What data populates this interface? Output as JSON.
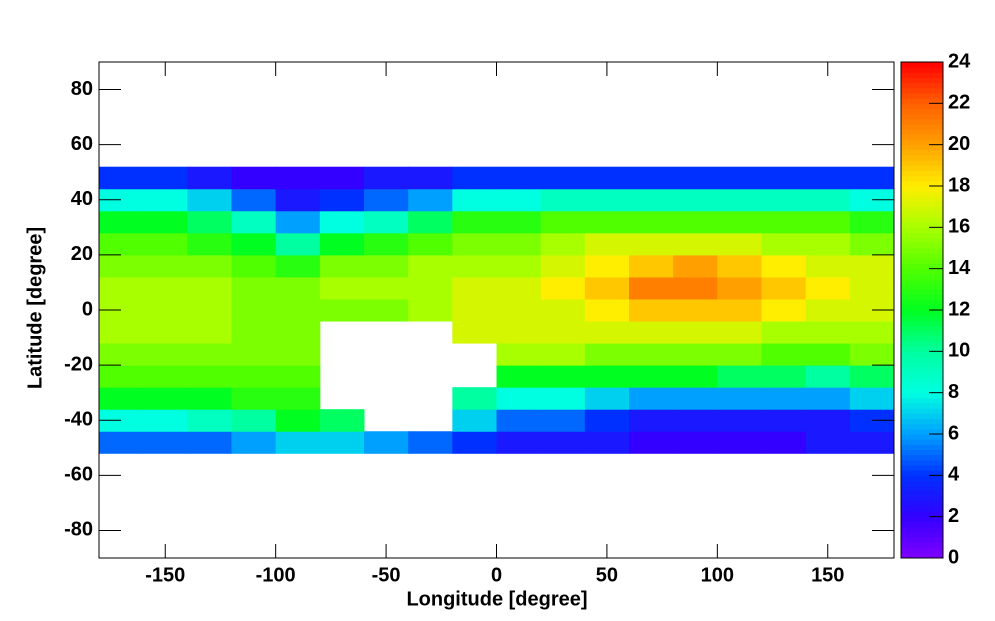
{
  "chart_data": {
    "type": "heatmap",
    "x_label": "Longitude [degree]",
    "y_label": "Latitude [degree]",
    "xlim": [
      -180,
      180
    ],
    "ylim": [
      -90,
      90
    ],
    "xticks": [
      -150,
      -100,
      -50,
      0,
      50,
      100,
      150
    ],
    "yticks": [
      -80,
      -60,
      -40,
      -20,
      0,
      20,
      40,
      60,
      80
    ],
    "x_bins": [
      -180,
      -160,
      -140,
      -120,
      -100,
      -80,
      -60,
      -40,
      -20,
      0,
      20,
      40,
      60,
      80,
      100,
      120,
      140,
      160,
      180
    ],
    "y_bins": [
      -52,
      -44,
      -36,
      -28,
      -20,
      -12,
      -4,
      4,
      12,
      20,
      28,
      36,
      44,
      52
    ],
    "z": [
      [
        5,
        5,
        5,
        6,
        7,
        7,
        6,
        5,
        4,
        3,
        3,
        3,
        2,
        2,
        2,
        2,
        3,
        3
      ],
      [
        8,
        8,
        9,
        10,
        12,
        11,
        null,
        null,
        7,
        5,
        5,
        4,
        3,
        3,
        3,
        3,
        3,
        4
      ],
      [
        12,
        12,
        12,
        13,
        13,
        null,
        null,
        null,
        10,
        8,
        8,
        7,
        6,
        6,
        6,
        6,
        6,
        7
      ],
      [
        14,
        14,
        14,
        14,
        14,
        null,
        null,
        null,
        null,
        12,
        12,
        12,
        12,
        12,
        11,
        11,
        10,
        11
      ],
      [
        15,
        15,
        15,
        15,
        15,
        null,
        null,
        null,
        null,
        16,
        16,
        15,
        15,
        15,
        15,
        14,
        14,
        15
      ],
      [
        16,
        16,
        16,
        15,
        15,
        null,
        null,
        null,
        17,
        17,
        17,
        17,
        17,
        17,
        17,
        16,
        16,
        16
      ],
      [
        16,
        16,
        16,
        15,
        15,
        15,
        15,
        16,
        17,
        17,
        17,
        18,
        19,
        19,
        19,
        18,
        17,
        17
      ],
      [
        16,
        16,
        16,
        15,
        15,
        16,
        16,
        16,
        17,
        17,
        18,
        19,
        21,
        21,
        20,
        19,
        18,
        17
      ],
      [
        15,
        15,
        15,
        14,
        13,
        15,
        15,
        16,
        16,
        16,
        17,
        18,
        19,
        20,
        19,
        18,
        17,
        17
      ],
      [
        14,
        14,
        13,
        12,
        10,
        12,
        13,
        14,
        15,
        15,
        16,
        17,
        17,
        17,
        17,
        16,
        16,
        15
      ],
      [
        12,
        12,
        11,
        9,
        6,
        8,
        9,
        11,
        13,
        13,
        14,
        14,
        14,
        14,
        14,
        14,
        14,
        13
      ],
      [
        8,
        8,
        7,
        5,
        3,
        4,
        5,
        6,
        8,
        8,
        9,
        9,
        9,
        9,
        9,
        9,
        9,
        8
      ],
      [
        4,
        4,
        3,
        2,
        2,
        2,
        3,
        3,
        4,
        4,
        4,
        4,
        4,
        4,
        4,
        4,
        4,
        4
      ]
    ],
    "zlim": [
      0,
      24
    ],
    "zticks": [
      0,
      2,
      4,
      6,
      8,
      10,
      12,
      14,
      16,
      18,
      20,
      22,
      24
    ],
    "palette": [
      "#7f00ff",
      "#3300ff",
      "#0030ff",
      "#00a0ff",
      "#00ffe0",
      "#00ffa0",
      "#00ff20",
      "#50ff00",
      "#a8ff00",
      "#ffee00",
      "#ffa000",
      "#ff6000",
      "#ff0000"
    ]
  }
}
